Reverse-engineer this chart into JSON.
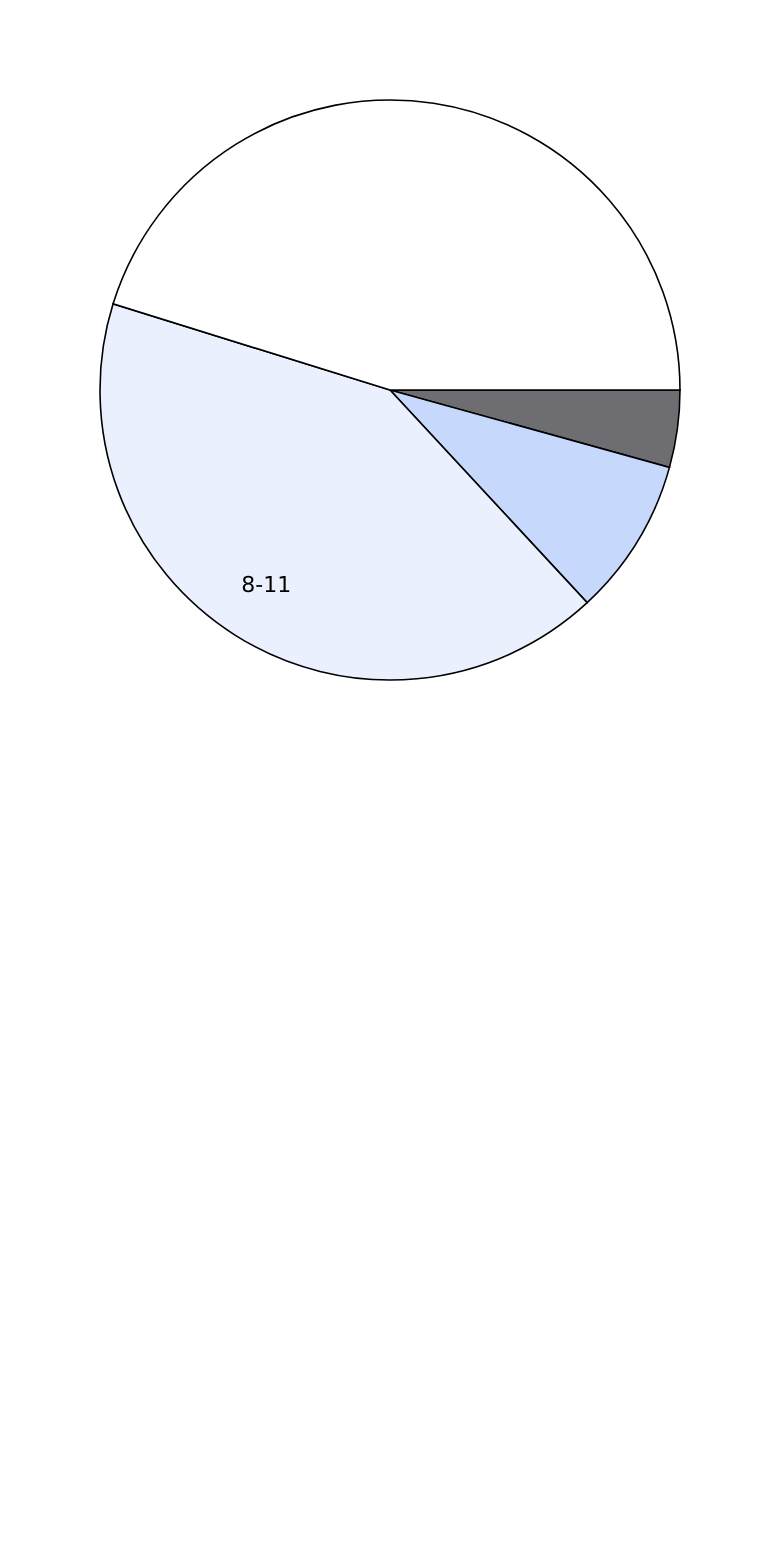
{
  "chart_data": {
    "type": "pie",
    "categories": [
      null,
      null,
      "8-11",
      null
    ],
    "values": [
      4.3,
      8.8,
      41.7,
      45.2
    ],
    "colors": [
      "#6e6e72",
      "#c6d8fc",
      "#eaf0fd",
      "#ffffff"
    ]
  }
}
